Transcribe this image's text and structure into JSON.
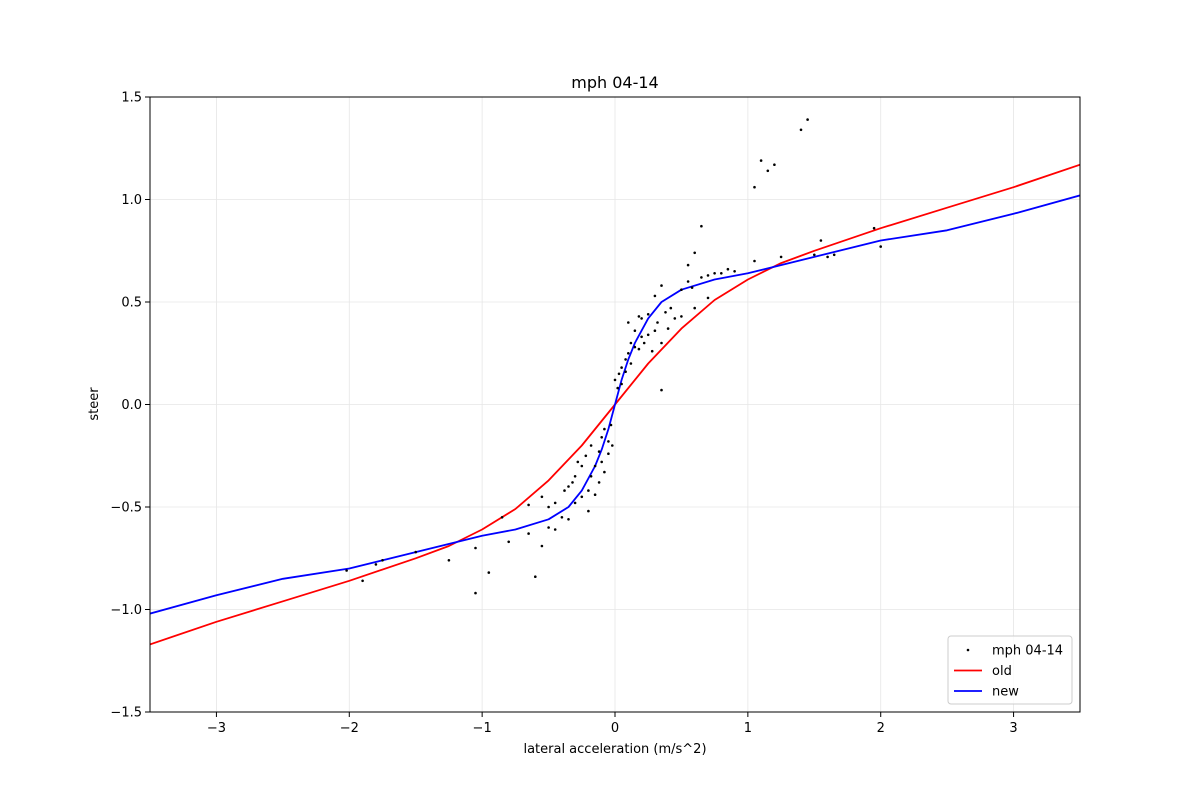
{
  "chart_data": {
    "type": "scatter",
    "title": "mph 04-14",
    "xlabel": "lateral acceleration (m/s^2)",
    "ylabel": "steer",
    "xlim": [
      -3.5,
      3.5
    ],
    "ylim": [
      -1.5,
      1.5
    ],
    "xticks": [
      -3,
      -2,
      -1,
      0,
      1,
      2,
      3
    ],
    "xtick_labels": [
      "−3",
      "−2",
      "−1",
      "0",
      "1",
      "2",
      "3"
    ],
    "yticks": [
      -1.5,
      -1.0,
      -0.5,
      0.0,
      0.5,
      1.0,
      1.5
    ],
    "ytick_labels": [
      "−1.5",
      "−1.0",
      "−0.5",
      "0.0",
      "0.5",
      "1.0",
      "1.5"
    ],
    "grid": true,
    "legend_position": "lower-right",
    "series": [
      {
        "name": "mph 04-14",
        "kind": "scatter",
        "color": "#000000",
        "points": [
          [
            -2.02,
            -0.81
          ],
          [
            -1.9,
            -0.86
          ],
          [
            -1.8,
            -0.78
          ],
          [
            -1.75,
            -0.76
          ],
          [
            -1.5,
            -0.72
          ],
          [
            -1.25,
            -0.76
          ],
          [
            -1.05,
            -0.7
          ],
          [
            -1.05,
            -0.92
          ],
          [
            -0.95,
            -0.82
          ],
          [
            -0.85,
            -0.55
          ],
          [
            -0.8,
            -0.67
          ],
          [
            -0.65,
            -0.49
          ],
          [
            -0.65,
            -0.63
          ],
          [
            -0.6,
            -0.84
          ],
          [
            -0.55,
            -0.69
          ],
          [
            -0.55,
            -0.45
          ],
          [
            -0.5,
            -0.5
          ],
          [
            -0.5,
            -0.6
          ],
          [
            -0.45,
            -0.61
          ],
          [
            -0.45,
            -0.48
          ],
          [
            -0.4,
            -0.55
          ],
          [
            -0.38,
            -0.42
          ],
          [
            -0.35,
            -0.4
          ],
          [
            -0.35,
            -0.56
          ],
          [
            -0.32,
            -0.38
          ],
          [
            -0.3,
            -0.35
          ],
          [
            -0.3,
            -0.48
          ],
          [
            -0.28,
            -0.28
          ],
          [
            -0.25,
            -0.3
          ],
          [
            -0.25,
            -0.45
          ],
          [
            -0.22,
            -0.25
          ],
          [
            -0.2,
            -0.52
          ],
          [
            -0.2,
            -0.42
          ],
          [
            -0.18,
            -0.35
          ],
          [
            -0.18,
            -0.2
          ],
          [
            -0.15,
            -0.3
          ],
          [
            -0.15,
            -0.44
          ],
          [
            -0.12,
            -0.23
          ],
          [
            -0.12,
            -0.38
          ],
          [
            -0.1,
            -0.16
          ],
          [
            -0.1,
            -0.28
          ],
          [
            -0.08,
            -0.12
          ],
          [
            -0.08,
            -0.33
          ],
          [
            -0.05,
            -0.24
          ],
          [
            -0.05,
            -0.18
          ],
          [
            -0.03,
            -0.1
          ],
          [
            -0.02,
            -0.2
          ],
          [
            0.0,
            0.12
          ],
          [
            0.02,
            0.08
          ],
          [
            0.03,
            0.15
          ],
          [
            0.05,
            0.1
          ],
          [
            0.05,
            0.18
          ],
          [
            0.08,
            0.16
          ],
          [
            0.08,
            0.22
          ],
          [
            0.1,
            0.25
          ],
          [
            0.1,
            0.4
          ],
          [
            0.12,
            0.3
          ],
          [
            0.12,
            0.2
          ],
          [
            0.15,
            0.28
          ],
          [
            0.15,
            0.36
          ],
          [
            0.18,
            0.27
          ],
          [
            0.18,
            0.43
          ],
          [
            0.2,
            0.33
          ],
          [
            0.2,
            0.42
          ],
          [
            0.22,
            0.3
          ],
          [
            0.25,
            0.34
          ],
          [
            0.25,
            0.44
          ],
          [
            0.28,
            0.26
          ],
          [
            0.3,
            0.53
          ],
          [
            0.3,
            0.36
          ],
          [
            0.32,
            0.4
          ],
          [
            0.35,
            0.58
          ],
          [
            0.35,
            0.3
          ],
          [
            0.35,
            0.07
          ],
          [
            0.38,
            0.45
          ],
          [
            0.4,
            0.37
          ],
          [
            0.42,
            0.47
          ],
          [
            0.45,
            0.42
          ],
          [
            0.5,
            0.56
          ],
          [
            0.5,
            0.43
          ],
          [
            0.55,
            0.6
          ],
          [
            0.55,
            0.68
          ],
          [
            0.58,
            0.57
          ],
          [
            0.6,
            0.74
          ],
          [
            0.6,
            0.47
          ],
          [
            0.65,
            0.87
          ],
          [
            0.65,
            0.62
          ],
          [
            0.7,
            0.63
          ],
          [
            0.7,
            0.52
          ],
          [
            0.75,
            0.64
          ],
          [
            0.8,
            0.64
          ],
          [
            0.85,
            0.66
          ],
          [
            0.9,
            0.65
          ],
          [
            1.05,
            1.06
          ],
          [
            1.05,
            0.7
          ],
          [
            1.1,
            1.19
          ],
          [
            1.15,
            1.14
          ],
          [
            1.2,
            1.17
          ],
          [
            1.25,
            0.72
          ],
          [
            1.4,
            1.34
          ],
          [
            1.45,
            1.39
          ],
          [
            1.5,
            0.73
          ],
          [
            1.55,
            0.8
          ],
          [
            1.6,
            0.72
          ],
          [
            1.65,
            0.73
          ],
          [
            1.95,
            0.86
          ],
          [
            2.0,
            0.77
          ]
        ]
      },
      {
        "name": "old",
        "kind": "line",
        "color": "#ff0000",
        "x": [
          -3.5,
          -3.0,
          -2.5,
          -2.0,
          -1.5,
          -1.25,
          -1.0,
          -0.75,
          -0.5,
          -0.25,
          0.0,
          0.25,
          0.5,
          0.75,
          1.0,
          1.25,
          1.5,
          2.0,
          2.5,
          3.0,
          3.5
        ],
        "y": [
          -1.17,
          -1.06,
          -0.96,
          -0.86,
          -0.75,
          -0.69,
          -0.61,
          -0.51,
          -0.37,
          -0.2,
          0.0,
          0.2,
          0.37,
          0.51,
          0.61,
          0.69,
          0.75,
          0.86,
          0.96,
          1.06,
          1.17
        ]
      },
      {
        "name": "new",
        "kind": "line",
        "color": "#0000ff",
        "x": [
          -3.5,
          -3.0,
          -2.5,
          -2.0,
          -1.5,
          -1.0,
          -0.75,
          -0.5,
          -0.35,
          -0.25,
          -0.15,
          -0.1,
          -0.05,
          0.0,
          0.05,
          0.1,
          0.15,
          0.25,
          0.35,
          0.5,
          0.75,
          1.0,
          1.5,
          2.0,
          2.5,
          3.0,
          3.5
        ],
        "y": [
          -1.02,
          -0.93,
          -0.85,
          -0.8,
          -0.72,
          -0.64,
          -0.61,
          -0.56,
          -0.5,
          -0.42,
          -0.3,
          -0.22,
          -0.12,
          0.0,
          0.12,
          0.22,
          0.3,
          0.42,
          0.5,
          0.56,
          0.61,
          0.64,
          0.72,
          0.8,
          0.85,
          0.93,
          1.02
        ]
      }
    ]
  }
}
